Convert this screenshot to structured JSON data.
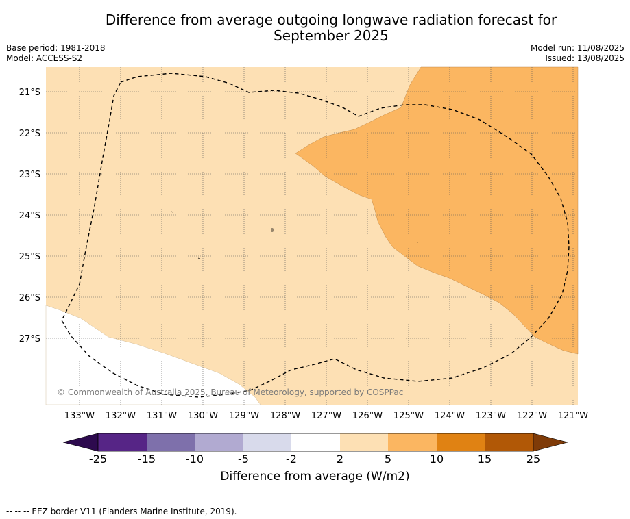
{
  "header": {
    "title_line1": "Difference from average outgoing longwave radiation forecast for",
    "title_line2": "September 2025",
    "base_period": "Base period: 1981-2018",
    "model": "Model: ACCESS-S2",
    "model_run": "Model run: 11/08/2025",
    "issued": "Issued: 13/08/2025"
  },
  "map": {
    "lat_labels": [
      "21°S",
      "22°S",
      "23°S",
      "24°S",
      "25°S",
      "26°S",
      "27°S"
    ],
    "lon_labels": [
      "133°W",
      "132°W",
      "131°W",
      "130°W",
      "129°W",
      "128°W",
      "127°W",
      "126°W",
      "125°W",
      "124°W",
      "123°W",
      "122°W",
      "121°W"
    ],
    "copyright": "© Commonwealth of Australia 2025, Bureau of Meteorology, supported by COSPPac",
    "colors": {
      "anomaly_2_to_5": "#fde0b4",
      "anomaly_5_to_10": "#fbb661",
      "neutral": "#ffffff",
      "grid": "#555555",
      "eez_border": "#000000"
    }
  },
  "colorbar": {
    "ticks": [
      "-25",
      "-15",
      "-10",
      "-5",
      "-2",
      "2",
      "5",
      "10",
      "15",
      "25"
    ],
    "colors": [
      "#2d0a4e",
      "#562586",
      "#7e70ab",
      "#b1aad1",
      "#d8daeb",
      "#ffffff",
      "#fde0b4",
      "#fbb661",
      "#e08213",
      "#b15806",
      "#7f3b08"
    ],
    "label": "Difference from average (W/m2)"
  },
  "footer": {
    "legend_note": "--  --  -- EEZ border V11 (Flanders Marine Institute, 2019)."
  }
}
